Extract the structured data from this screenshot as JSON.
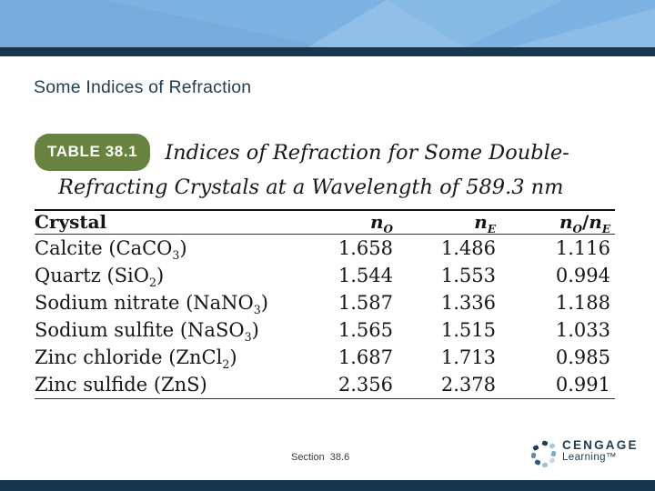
{
  "slide": {
    "title": "Some Indices of Refraction",
    "footer": {
      "section": "Section  38.6"
    },
    "brand": {
      "name": "CENGAGE",
      "sub": "Learning™"
    }
  },
  "figure": {
    "tag": "TABLE 38.1",
    "caption_line1": "Indices of Refraction for Some Double-",
    "caption_line2": "Refracting Crystals at a Wavelength of 589.3 nm",
    "table": {
      "columns": [
        {
          "parts": [
            {
              "t": "Crystal"
            }
          ]
        },
        {
          "parts": [
            {
              "t": "n",
              "it": true
            },
            {
              "t": "O",
              "sub": true,
              "it": true
            }
          ]
        },
        {
          "parts": [
            {
              "t": "n",
              "it": true
            },
            {
              "t": "E",
              "sub": true,
              "it": true
            }
          ]
        },
        {
          "parts": [
            {
              "t": "n",
              "it": true
            },
            {
              "t": "O",
              "sub": true,
              "it": true
            },
            {
              "t": "/"
            },
            {
              "t": "n",
              "it": true
            },
            {
              "t": "E",
              "sub": true,
              "it": true
            }
          ]
        }
      ],
      "rows": [
        {
          "crystal": [
            {
              "t": "Calcite (CaCO"
            },
            {
              "t": "3",
              "sub": true
            },
            {
              "t": ")"
            }
          ],
          "values": [
            "1.658",
            "1.486",
            "1.116"
          ]
        },
        {
          "crystal": [
            {
              "t": "Quartz (SiO"
            },
            {
              "t": "2",
              "sub": true
            },
            {
              "t": ")"
            }
          ],
          "values": [
            "1.544",
            "1.553",
            "0.994"
          ]
        },
        {
          "crystal": [
            {
              "t": "Sodium nitrate (NaNO"
            },
            {
              "t": "3",
              "sub": true
            },
            {
              "t": ")"
            }
          ],
          "values": [
            "1.587",
            "1.336",
            "1.188"
          ]
        },
        {
          "crystal": [
            {
              "t": "Sodium sulfite (NaSO"
            },
            {
              "t": "3",
              "sub": true
            },
            {
              "t": ")"
            }
          ],
          "values": [
            "1.565",
            "1.515",
            "1.033"
          ]
        },
        {
          "crystal": [
            {
              "t": "Zinc chloride (ZnCl"
            },
            {
              "t": "2",
              "sub": true
            },
            {
              "t": ")"
            }
          ],
          "values": [
            "1.687",
            "1.713",
            "0.985"
          ]
        },
        {
          "crystal": [
            {
              "t": "Zinc sulfide (ZnS)"
            }
          ],
          "values": [
            "2.356",
            "2.378",
            "0.991"
          ]
        }
      ]
    }
  },
  "colors": {
    "banner_blue": "#7db3e3",
    "navy_stripe": "#17364e",
    "title_text": "#1f3e52",
    "pill_green": "#68833f",
    "table_text": "#151515",
    "footer_text": "#3d3d3d",
    "brand_navy": "#1d3d55"
  }
}
